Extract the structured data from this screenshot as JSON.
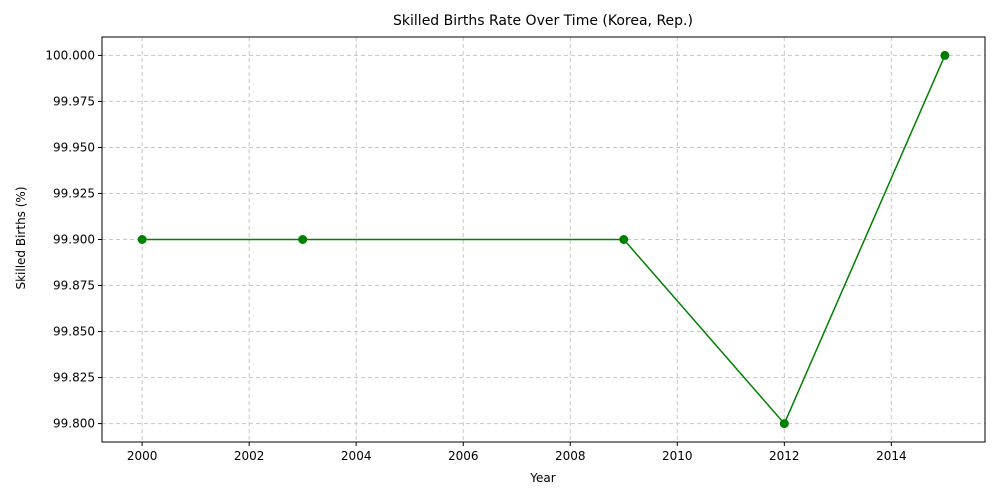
{
  "chart_data": {
    "type": "line",
    "title": "Skilled Births Rate Over Time (Korea, Rep.)",
    "xlabel": "Year",
    "ylabel": "Skilled Births (%)",
    "x": [
      2000,
      2003,
      2009,
      2012,
      2015
    ],
    "series": [
      {
        "values": [
          99.9,
          99.9,
          99.9,
          99.8,
          100.0
        ]
      }
    ],
    "xlim": [
      1999.25,
      2015.75
    ],
    "ylim": [
      99.79,
      100.01
    ],
    "x_ticks": [
      "2000",
      "2002",
      "2004",
      "2006",
      "2008",
      "2010",
      "2012",
      "2014"
    ],
    "y_ticks": [
      "99.800",
      "99.825",
      "99.850",
      "99.875",
      "99.900",
      "99.925",
      "99.950",
      "99.975",
      "100.000"
    ],
    "grid": true,
    "grid_style": "dashed",
    "line_color": "#008000",
    "marker": "circle"
  }
}
